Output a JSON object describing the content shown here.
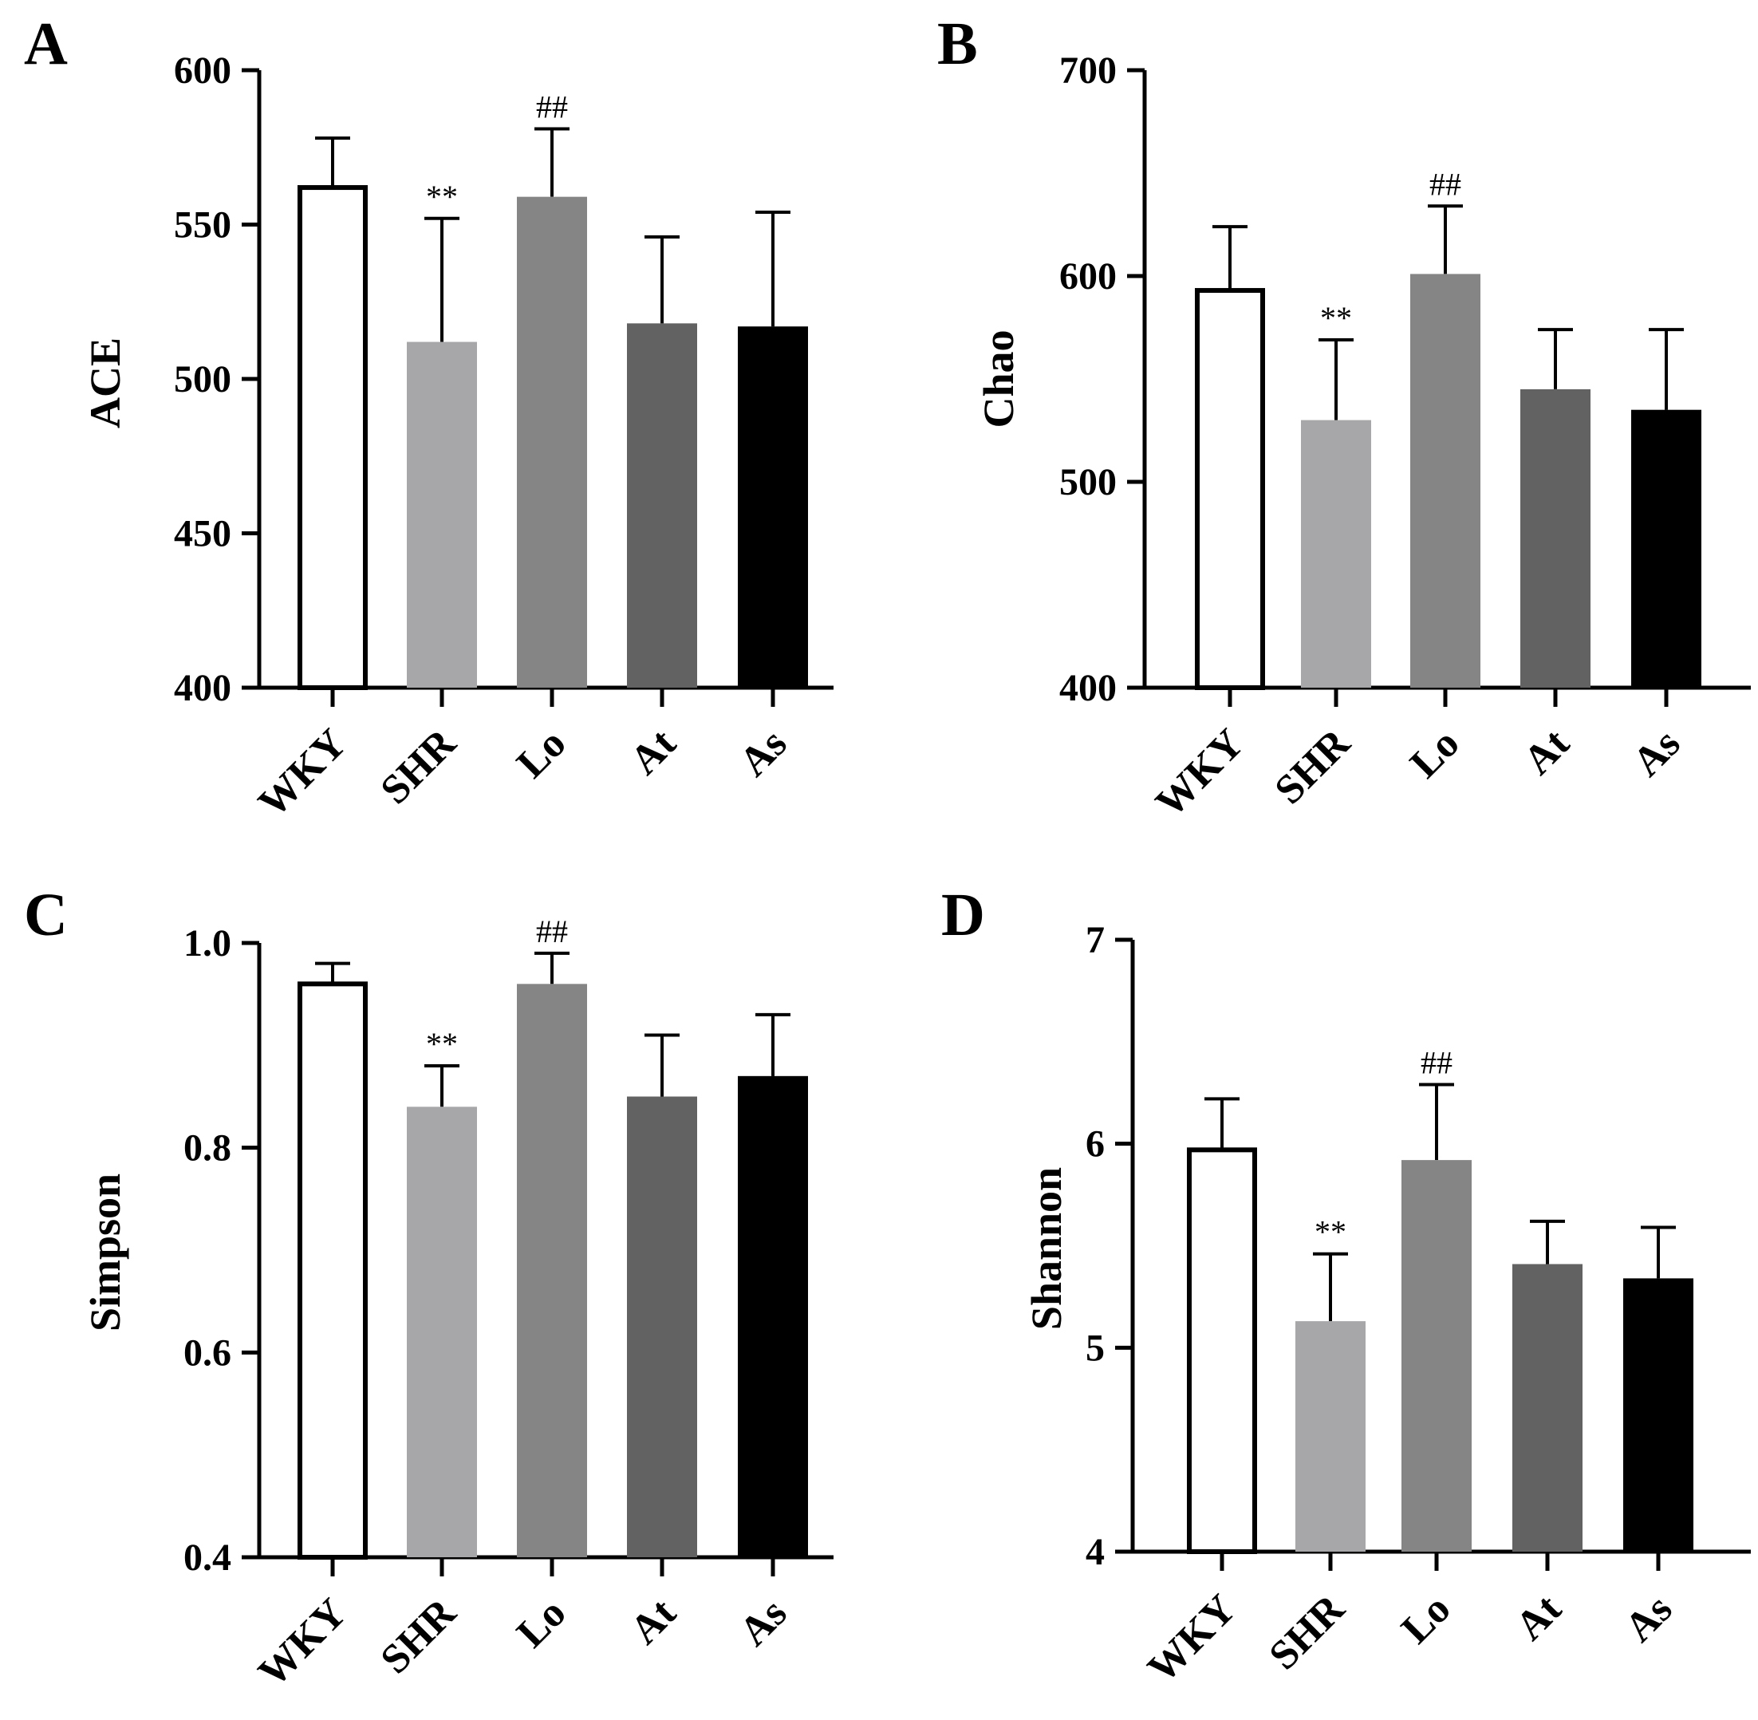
{
  "colors": {
    "WKY": "#ffffff",
    "SHR": "#a7a6a9",
    "Lo": "#858585",
    "At": "#626262",
    "As": "#000000"
  },
  "chart_data": [
    {
      "panel": "A",
      "type": "bar",
      "ylabel": "ACE",
      "categories": [
        "WKY",
        "SHR",
        "Lo",
        "At",
        "As"
      ],
      "values": [
        562,
        512,
        559,
        518,
        517
      ],
      "errors": [
        16,
        40,
        22,
        28,
        37
      ],
      "annotations": [
        "",
        "**",
        "##",
        "",
        ""
      ],
      "ylim": [
        400,
        600
      ],
      "yticks": [
        400,
        450,
        500,
        550,
        600
      ],
      "ytick_labels": [
        "400",
        "450",
        "500",
        "550",
        "600"
      ]
    },
    {
      "panel": "B",
      "type": "bar",
      "ylabel": "Chao",
      "categories": [
        "WKY",
        "SHR",
        "Lo",
        "At",
        "As"
      ],
      "values": [
        593,
        530,
        601,
        545,
        535
      ],
      "errors": [
        31,
        39,
        33,
        29,
        39
      ],
      "annotations": [
        "",
        "**",
        "##",
        "",
        ""
      ],
      "ylim": [
        400,
        700
      ],
      "yticks": [
        400,
        500,
        600,
        700
      ],
      "ytick_labels": [
        "400",
        "500",
        "600",
        "700"
      ]
    },
    {
      "panel": "C",
      "type": "bar",
      "ylabel": "Simpson",
      "categories": [
        "WKY",
        "SHR",
        "Lo",
        "At",
        "As"
      ],
      "values": [
        0.96,
        0.84,
        0.96,
        0.85,
        0.87
      ],
      "errors": [
        0.02,
        0.04,
        0.03,
        0.06,
        0.06
      ],
      "annotations": [
        "",
        "**",
        "##",
        "",
        ""
      ],
      "ylim": [
        0.4,
        1.0
      ],
      "yticks": [
        0.4,
        0.6,
        0.8,
        1.0
      ],
      "ytick_labels": [
        "0.4",
        "0.6",
        "0.8",
        "1.0"
      ]
    },
    {
      "panel": "D",
      "type": "bar",
      "ylabel": "Shannon",
      "categories": [
        "WKY",
        "SHR",
        "Lo",
        "At",
        "As"
      ],
      "values": [
        5.97,
        5.13,
        5.92,
        5.41,
        5.34
      ],
      "errors": [
        0.25,
        0.33,
        0.37,
        0.21,
        0.25
      ],
      "annotations": [
        "",
        "**",
        "##",
        "",
        ""
      ],
      "ylim": [
        4,
        7
      ],
      "yticks": [
        4,
        5,
        6,
        7
      ],
      "ytick_labels": [
        "4",
        "5",
        "6",
        "7"
      ]
    }
  ]
}
